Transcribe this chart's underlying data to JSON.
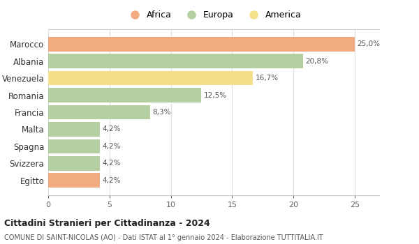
{
  "categories": [
    "Egitto",
    "Svizzera",
    "Spagna",
    "Malta",
    "Francia",
    "Romania",
    "Venezuela",
    "Albania",
    "Marocco"
  ],
  "values": [
    4.2,
    4.2,
    4.2,
    4.2,
    8.3,
    12.5,
    16.7,
    20.8,
    25.0
  ],
  "colors": [
    "#f2ab80",
    "#b5cfa0",
    "#b5cfa0",
    "#b5cfa0",
    "#b5cfa0",
    "#b5cfa0",
    "#f5e08a",
    "#b5cfa0",
    "#f2ab80"
  ],
  "labels": [
    "4,2%",
    "4,2%",
    "4,2%",
    "4,2%",
    "8,3%",
    "12,5%",
    "16,7%",
    "20,8%",
    "25,0%"
  ],
  "legend": [
    {
      "label": "Africa",
      "color": "#f2ab80"
    },
    {
      "label": "Europa",
      "color": "#b5cfa0"
    },
    {
      "label": "America",
      "color": "#f5e08a"
    }
  ],
  "xlim": [
    0,
    27
  ],
  "xticks": [
    0,
    5,
    10,
    15,
    20,
    25
  ],
  "title": "Cittadini Stranieri per Cittadinanza - 2024",
  "subtitle": "COMUNE DI SAINT-NICOLAS (AO) - Dati ISTAT al 1° gennaio 2024 - Elaborazione TUTTITALIA.IT",
  "background_color": "#ffffff",
  "plot_bg_color": "#ffffff",
  "grid_color": "#e0e0e0"
}
